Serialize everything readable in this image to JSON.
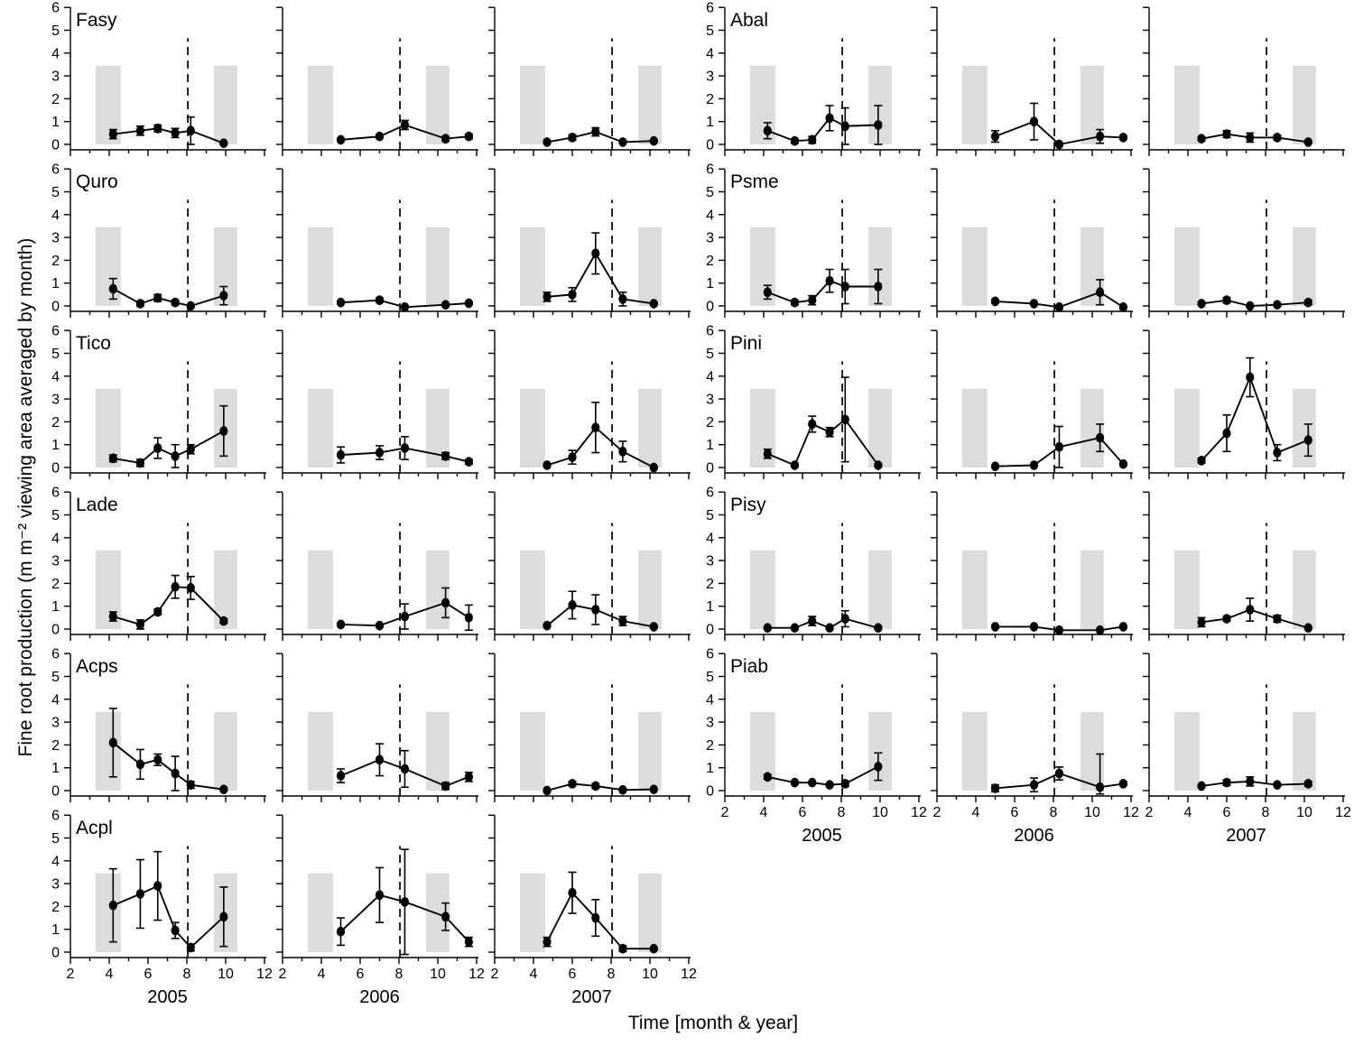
{
  "chart_data": {
    "type": "line",
    "title": "",
    "xlabel": "Time [month & year]",
    "ylabel": "Fine root production (m m⁻² viewing area averaged by month)",
    "xlim": [
      2,
      12
    ],
    "ylim": [
      0,
      6
    ],
    "xticks": [
      2,
      4,
      6,
      8,
      10,
      12
    ],
    "yticks": [
      0,
      1,
      2,
      3,
      4,
      5,
      6
    ],
    "grid": "off",
    "legend": "none",
    "years": [
      "2005",
      "2006",
      "2007"
    ],
    "x_months": {
      "2005": [
        4.2,
        5.6,
        6.5,
        7.4,
        8.2,
        9.9
      ],
      "2006": [
        5.0,
        7.0,
        8.3,
        10.4,
        11.6
      ],
      "2007": [
        4.7,
        6.0,
        7.2,
        8.6,
        10.2
      ]
    },
    "shaded_bands": {
      "left": [
        3.3,
        4.6
      ],
      "right": [
        9.4,
        10.6
      ],
      "top": 3.45,
      "color": "#dcdcdc"
    },
    "dashed_line": {
      "x_month": 8.05,
      "y_top": 4.65,
      "color": "#000000"
    },
    "series_color": "#000000",
    "blocks": [
      {
        "name": "left",
        "species": [
          "Fasy",
          "Quro",
          "Tico",
          "Lade",
          "Acps",
          "Acpl"
        ]
      },
      {
        "name": "right",
        "species": [
          "Abal",
          "Psme",
          "Pini",
          "Pisy",
          "Piab"
        ]
      }
    ],
    "panels": {
      "Fasy": {
        "2005": {
          "y": [
            0.45,
            0.6,
            0.7,
            0.5,
            0.6,
            0.05
          ],
          "err": [
            0.2,
            0.2,
            0.15,
            0.2,
            0.6,
            0.05
          ]
        },
        "2006": {
          "y": [
            0.2,
            0.35,
            0.85,
            0.25,
            0.35
          ],
          "err": [
            0.05,
            0.08,
            0.2,
            0.1,
            0.1
          ]
        },
        "2007": {
          "y": [
            0.1,
            0.3,
            0.55,
            0.1,
            0.15
          ],
          "err": [
            0.05,
            0.12,
            0.18,
            0.05,
            0.05
          ]
        }
      },
      "Quro": {
        "2005": {
          "y": [
            0.75,
            0.1,
            0.35,
            0.15,
            0.0,
            0.45
          ],
          "err": [
            0.45,
            0.1,
            0.15,
            0.1,
            0.05,
            0.4
          ]
        },
        "2006": {
          "y": [
            0.15,
            0.25,
            -0.05,
            0.05,
            0.12
          ],
          "err": [
            0.06,
            0.1,
            0.05,
            0.06,
            0.06
          ]
        },
        "2007": {
          "y": [
            0.4,
            0.5,
            2.3,
            0.3,
            0.1
          ],
          "err": [
            0.2,
            0.3,
            0.9,
            0.3,
            0.06
          ]
        }
      },
      "Tico": {
        "2005": {
          "y": [
            0.4,
            0.2,
            0.85,
            0.5,
            0.8,
            1.6
          ],
          "err": [
            0.15,
            0.15,
            0.45,
            0.5,
            0.2,
            1.1
          ]
        },
        "2006": {
          "y": [
            0.55,
            0.65,
            0.85,
            0.5,
            0.25
          ],
          "err": [
            0.35,
            0.3,
            0.5,
            0.15,
            0.1
          ]
        },
        "2007": {
          "y": [
            0.1,
            0.45,
            1.75,
            0.7,
            0.0
          ],
          "err": [
            0.05,
            0.3,
            1.1,
            0.45,
            0.05
          ]
        }
      },
      "Lade": {
        "2005": {
          "y": [
            0.55,
            0.2,
            0.75,
            1.85,
            1.8,
            0.35
          ],
          "err": [
            0.2,
            0.2,
            0.12,
            0.5,
            0.5,
            0.1
          ]
        },
        "2006": {
          "y": [
            0.2,
            0.15,
            0.55,
            1.15,
            0.5
          ],
          "err": [
            0.06,
            0.06,
            0.55,
            0.65,
            0.55
          ]
        },
        "2007": {
          "y": [
            0.15,
            1.05,
            0.85,
            0.35,
            0.1
          ],
          "err": [
            0.06,
            0.6,
            0.65,
            0.2,
            0.06
          ]
        }
      },
      "Acps": {
        "2005": {
          "y": [
            2.1,
            1.15,
            1.35,
            0.75,
            0.25,
            0.05
          ],
          "err": [
            1.5,
            0.65,
            0.25,
            0.75,
            0.15,
            0.06
          ]
        },
        "2006": {
          "y": [
            0.65,
            1.35,
            0.95,
            0.2,
            0.6
          ],
          "err": [
            0.3,
            0.7,
            0.8,
            0.15,
            0.2
          ]
        },
        "2007": {
          "y": [
            0.0,
            0.3,
            0.2,
            0.03,
            0.05
          ],
          "err": [
            0.04,
            0.1,
            0.1,
            0.04,
            0.04
          ]
        }
      },
      "Acpl": {
        "2005": {
          "y": [
            2.05,
            2.55,
            2.9,
            0.95,
            0.2,
            1.55
          ],
          "err": [
            1.6,
            1.5,
            1.5,
            0.35,
            0.15,
            1.3
          ]
        },
        "2006": {
          "y": [
            0.9,
            2.5,
            2.2,
            1.55,
            0.45
          ],
          "err": [
            0.6,
            1.2,
            2.3,
            0.6,
            0.2
          ]
        },
        "2007": {
          "y": [
            0.45,
            2.6,
            1.5,
            0.15,
            0.15
          ],
          "err": [
            0.2,
            0.9,
            0.8,
            0.12,
            0.06
          ]
        }
      },
      "Abal": {
        "2005": {
          "y": [
            0.6,
            0.15,
            0.2,
            1.15,
            0.8,
            0.85
          ],
          "err": [
            0.35,
            0.1,
            0.15,
            0.55,
            0.8,
            0.85
          ]
        },
        "2006": {
          "y": [
            0.35,
            1.0,
            0.0,
            0.35,
            0.3
          ],
          "err": [
            0.25,
            0.8,
            0.05,
            0.3,
            0.08
          ]
        },
        "2007": {
          "y": [
            0.25,
            0.45,
            0.3,
            0.3,
            0.1
          ],
          "err": [
            0.08,
            0.15,
            0.2,
            0.1,
            0.05
          ]
        }
      },
      "Psme": {
        "2005": {
          "y": [
            0.6,
            0.15,
            0.25,
            1.1,
            0.85,
            0.85
          ],
          "err": [
            0.3,
            0.1,
            0.2,
            0.5,
            0.75,
            0.75
          ]
        },
        "2006": {
          "y": [
            0.2,
            0.1,
            -0.05,
            0.6,
            -0.05
          ],
          "err": [
            0.08,
            0.05,
            0.06,
            0.55,
            0.06
          ]
        },
        "2007": {
          "y": [
            0.1,
            0.25,
            0.0,
            0.05,
            0.15
          ],
          "err": [
            0.06,
            0.12,
            0.05,
            0.05,
            0.1
          ]
        }
      },
      "Pini": {
        "2005": {
          "y": [
            0.6,
            0.1,
            1.9,
            1.55,
            2.1,
            0.1
          ],
          "err": [
            0.2,
            0.06,
            0.35,
            0.2,
            1.85,
            0.06
          ]
        },
        "2006": {
          "y": [
            0.05,
            0.1,
            0.9,
            1.3,
            0.15
          ],
          "err": [
            0.04,
            0.05,
            0.9,
            0.6,
            0.06
          ]
        },
        "2007": {
          "y": [
            0.3,
            1.5,
            3.95,
            0.65,
            1.2
          ],
          "err": [
            0.1,
            0.8,
            0.85,
            0.35,
            0.7
          ]
        }
      },
      "Pisy": {
        "2005": {
          "y": [
            0.05,
            0.05,
            0.35,
            0.05,
            0.45,
            0.05
          ],
          "err": [
            0.05,
            0.05,
            0.2,
            0.05,
            0.35,
            0.05
          ]
        },
        "2006": {
          "y": [
            0.1,
            0.1,
            -0.05,
            -0.05,
            0.1
          ],
          "err": [
            0.05,
            0.05,
            0.04,
            0.04,
            0.05
          ]
        },
        "2007": {
          "y": [
            0.3,
            0.45,
            0.85,
            0.45,
            0.05
          ],
          "err": [
            0.2,
            0.1,
            0.5,
            0.15,
            0.05
          ]
        }
      },
      "Piab": {
        "2005": {
          "y": [
            0.6,
            0.35,
            0.35,
            0.25,
            0.3,
            1.05
          ],
          "err": [
            0.1,
            0.06,
            0.06,
            0.06,
            0.12,
            0.6
          ]
        },
        "2006": {
          "y": [
            0.1,
            0.25,
            0.75,
            0.15,
            0.3
          ],
          "err": [
            0.15,
            0.3,
            0.28,
            1.45,
            0.08
          ]
        },
        "2007": {
          "y": [
            0.2,
            0.35,
            0.4,
            0.25,
            0.3
          ],
          "err": [
            0.06,
            0.12,
            0.2,
            0.06,
            0.1
          ]
        }
      }
    }
  }
}
